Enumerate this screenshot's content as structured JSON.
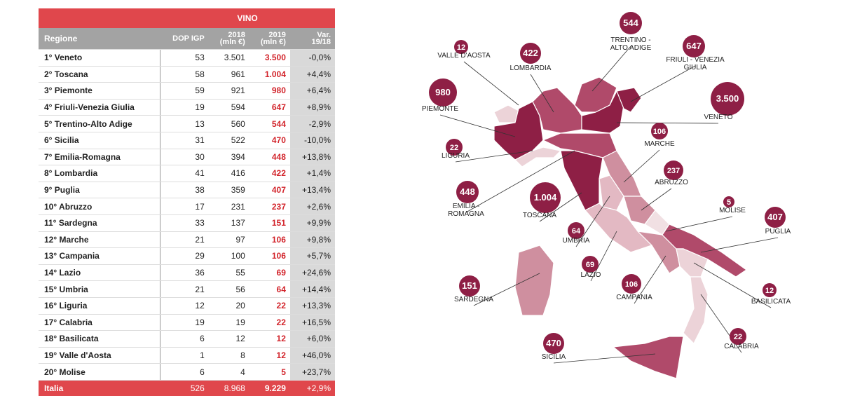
{
  "table": {
    "group_header": "VINO",
    "columns": [
      "Regione",
      "DOP IGP",
      "2018\n(mln €)",
      "2019\n(mln €)",
      "Var.\n19/18"
    ],
    "rows": [
      [
        "1° Veneto",
        "53",
        "3.501",
        "3.500",
        "-0,0%"
      ],
      [
        "2° Toscana",
        "58",
        "961",
        "1.004",
        "+4,4%"
      ],
      [
        "3° Piemonte",
        "59",
        "921",
        "980",
        "+6,4%"
      ],
      [
        "4° Friuli-Venezia Giulia",
        "19",
        "594",
        "647",
        "+8,9%"
      ],
      [
        "5° Trentino-Alto Adige",
        "13",
        "560",
        "544",
        "-2,9%"
      ],
      [
        "6° Sicilia",
        "31",
        "522",
        "470",
        "-10,0%"
      ],
      [
        "7° Emilia-Romagna",
        "30",
        "394",
        "448",
        "+13,8%"
      ],
      [
        "8° Lombardia",
        "41",
        "416",
        "422",
        "+1,4%"
      ],
      [
        "9° Puglia",
        "38",
        "359",
        "407",
        "+13,4%"
      ],
      [
        "10° Abruzzo",
        "17",
        "231",
        "237",
        "+2,6%"
      ],
      [
        "11° Sardegna",
        "33",
        "137",
        "151",
        "+9,9%"
      ],
      [
        "12° Marche",
        "21",
        "97",
        "106",
        "+9,8%"
      ],
      [
        "13° Campania",
        "29",
        "100",
        "106",
        "+5,7%"
      ],
      [
        "14° Lazio",
        "36",
        "55",
        "69",
        "+24,6%"
      ],
      [
        "15° Umbria",
        "21",
        "56",
        "64",
        "+14,4%"
      ],
      [
        "16° Liguria",
        "12",
        "20",
        "22",
        "+13,3%"
      ],
      [
        "17° Calabria",
        "19",
        "19",
        "22",
        "+16,5%"
      ],
      [
        "18° Basilicata",
        "6",
        "12",
        "12",
        "+6,0%"
      ],
      [
        "19° Valle d'Aosta",
        "1",
        "8",
        "12",
        "+46,0%"
      ],
      [
        "20° Molise",
        "6",
        "4",
        "5",
        "+23,7%"
      ]
    ],
    "total": [
      "Italia",
      "526",
      "8.968",
      "9.229",
      "+2,9%"
    ]
  },
  "map": {
    "labels": [
      {
        "name": "VALLE D'AOSTA",
        "value": "12"
      },
      {
        "name": "LOMBARDIA",
        "value": "422"
      },
      {
        "name": "TRENTINO -\nALTO ADIGE",
        "value": "544"
      },
      {
        "name": "FRIULI - VENEZIA\nGIULIA",
        "value": "647"
      },
      {
        "name": "PIEMONTE",
        "value": "980"
      },
      {
        "name": "VENETO",
        "value": "3.500"
      },
      {
        "name": "LIGURIA",
        "value": "22"
      },
      {
        "name": "MARCHE",
        "value": "106"
      },
      {
        "name": "EMILIA -\nROMAGNA",
        "value": "448"
      },
      {
        "name": "TOSCANA",
        "value": "1.004"
      },
      {
        "name": "ABRUZZO",
        "value": "237"
      },
      {
        "name": "MOLISE",
        "value": "5"
      },
      {
        "name": "PUGLIA",
        "value": "407"
      },
      {
        "name": "UMBRIA",
        "value": "64"
      },
      {
        "name": "LAZIO",
        "value": "69"
      },
      {
        "name": "SARDEGNA",
        "value": "151"
      },
      {
        "name": "CAMPANIA",
        "value": "106"
      },
      {
        "name": "BASILICATA",
        "value": "12"
      },
      {
        "name": "CALABRIA",
        "value": "22"
      },
      {
        "name": "SICILIA",
        "value": "470"
      }
    ]
  }
}
